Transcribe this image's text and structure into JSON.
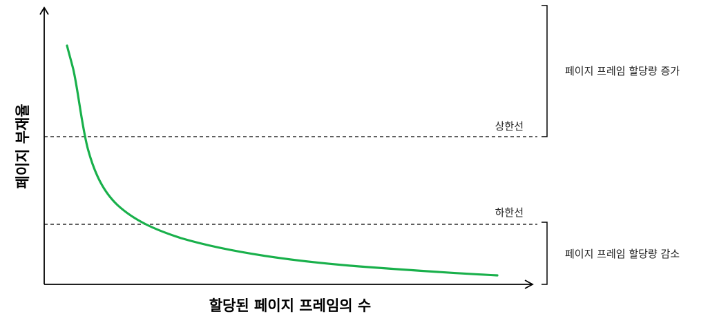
{
  "diagram": {
    "x_axis_label": "할당된 페이지 프레임의 수",
    "y_axis_label": "페이지 부재율",
    "upper_line_label": "상한선",
    "lower_line_label": "하한선",
    "upper_region_label": "페이지 프레임 할당량 증가",
    "lower_region_label": "페이지 프레임 할당량 감소",
    "curve_color": "#19b04b",
    "axis_color": "#000000",
    "threshold_line_style": "dashed"
  }
}
